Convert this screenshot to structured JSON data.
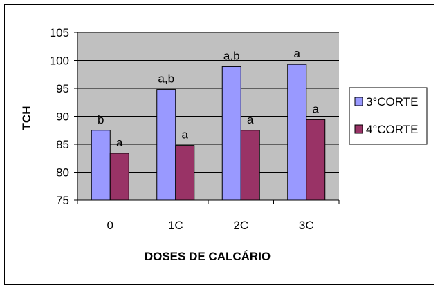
{
  "chart_data": {
    "type": "bar",
    "categories": [
      "0",
      "1C",
      "2C",
      "3C"
    ],
    "series": [
      {
        "name": "3°CORTE",
        "values": [
          87.5,
          94.8,
          98.9,
          99.3
        ],
        "labels": [
          "b",
          "a,b",
          "a,b",
          "a"
        ],
        "color": "#9999ff"
      },
      {
        "name": "4°CORTE",
        "values": [
          83.4,
          84.8,
          87.5,
          89.4
        ],
        "labels": [
          "a",
          "a",
          "a",
          "a"
        ],
        "color": "#993366"
      }
    ],
    "title": "",
    "xlabel": "DOSES DE CALCÁRIO",
    "ylabel": "TCH",
    "ylim": [
      75,
      105
    ],
    "yticks": [
      "75",
      "80",
      "85",
      "90",
      "95",
      "100",
      "105"
    ],
    "grid": true,
    "plot_background": "#c0c0c0",
    "legend_position": "right"
  }
}
